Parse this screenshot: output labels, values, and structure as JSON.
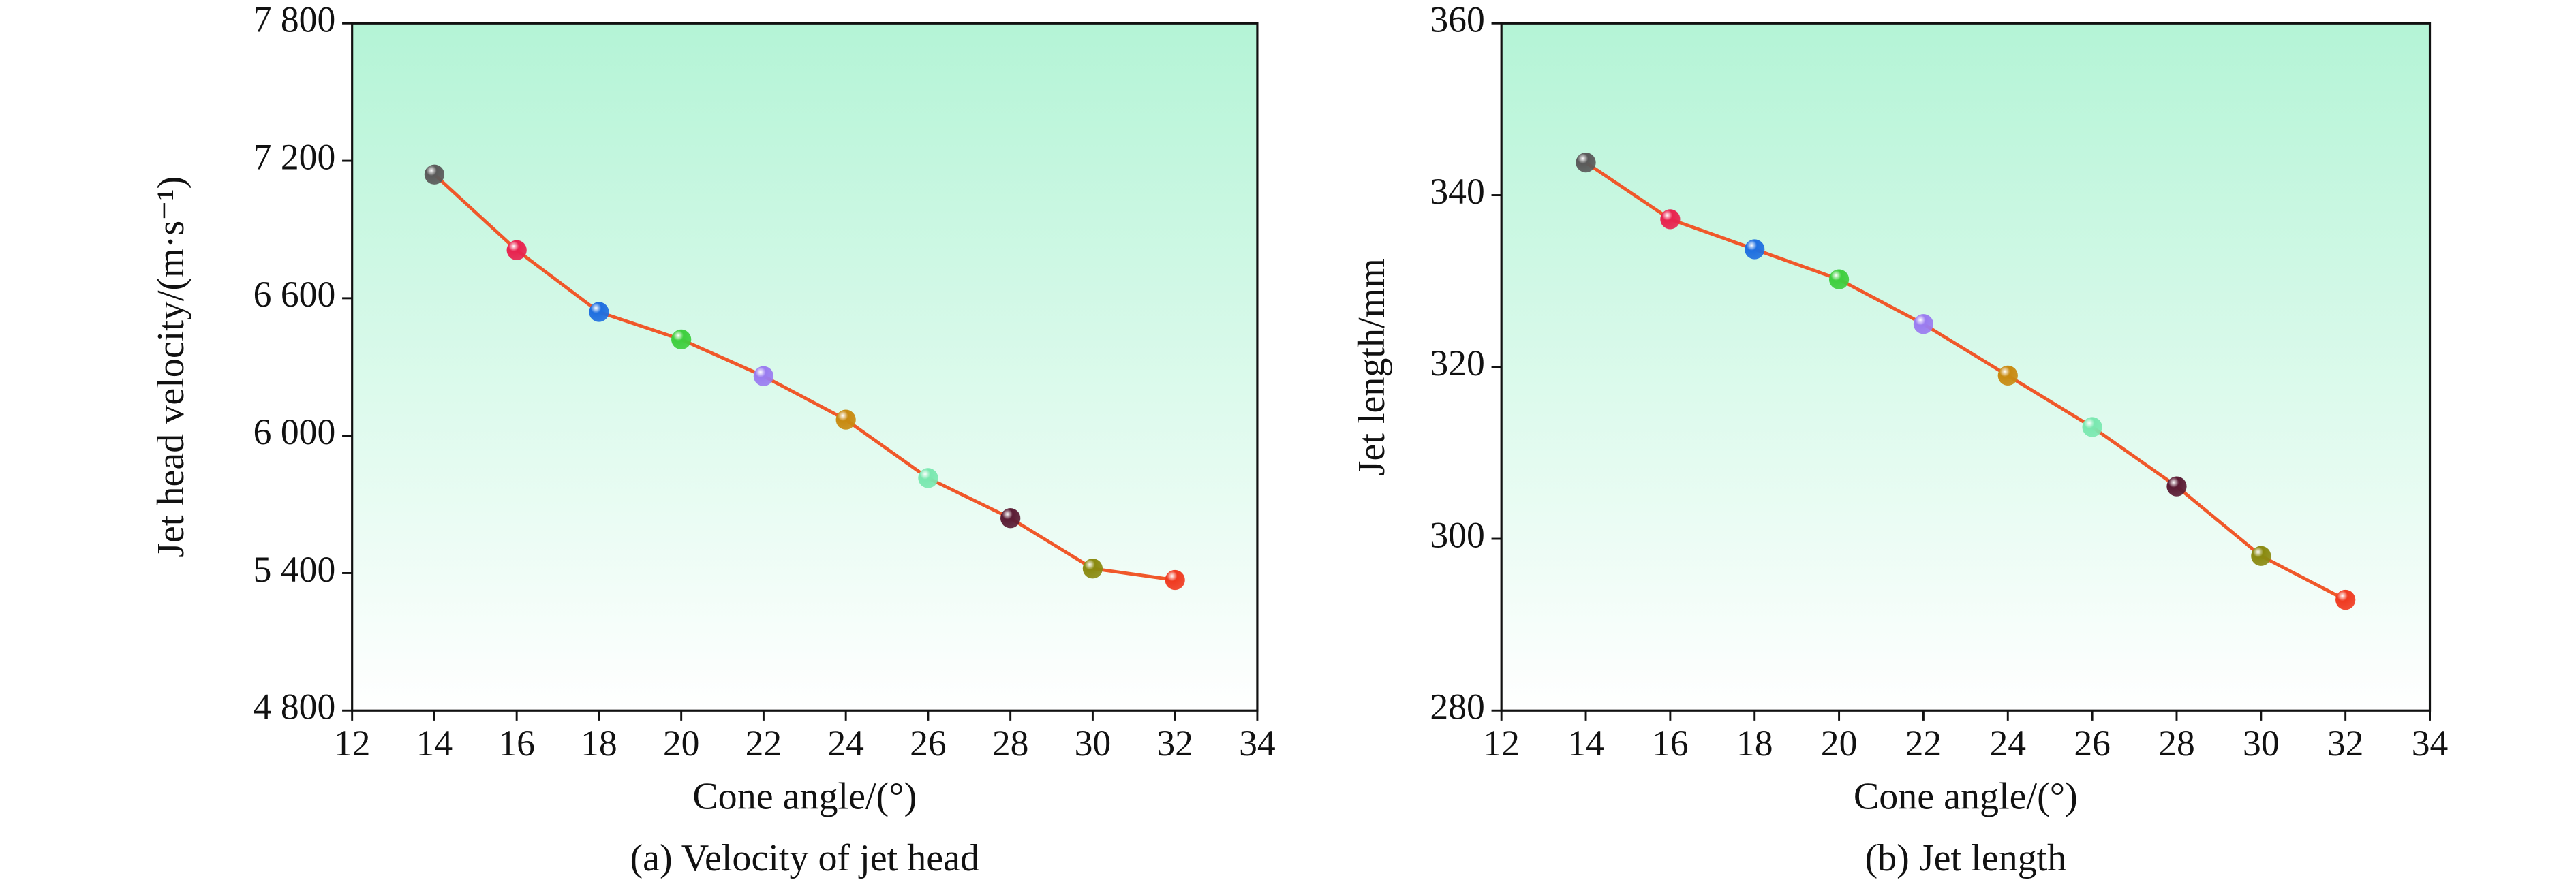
{
  "chart_data": [
    {
      "type": "line",
      "caption": "(a) Velocity of jet head",
      "x_label": "Cone angle/(°)",
      "y_label": "Jet head velocity/(m·s⁻¹)",
      "x": [
        14,
        16,
        18,
        20,
        22,
        24,
        26,
        28,
        30,
        32
      ],
      "values": [
        7140,
        6810,
        6540,
        6420,
        6260,
        6070,
        5815,
        5640,
        5420,
        5370
      ],
      "line_color": "#f0582a",
      "point_colors": [
        "#5a5a5a",
        "#e8234f",
        "#1f6fe0",
        "#3ecf3e",
        "#9a7cf0",
        "#c88a10",
        "#7ae8b0",
        "#5a1c34",
        "#8a8a10",
        "#f03a20"
      ],
      "xlim": [
        12,
        34
      ],
      "xticks": [
        12,
        14,
        16,
        18,
        20,
        22,
        24,
        26,
        28,
        30,
        32,
        34
      ],
      "ylim": [
        4800,
        7800
      ],
      "yticks": [
        {
          "value": 4800,
          "label": "4 800"
        },
        {
          "value": 5400,
          "label": "5 400"
        },
        {
          "value": 6000,
          "label": "6 000"
        },
        {
          "value": 6600,
          "label": "6 600"
        },
        {
          "value": 7200,
          "label": "7 200"
        },
        {
          "value": 7800,
          "label": "7 800"
        }
      ],
      "background_gradient": [
        "#b4f4d6",
        "#ffffff"
      ]
    },
    {
      "type": "line",
      "caption": "(b) Jet length",
      "x_label": "Cone angle/(°)",
      "y_label": "Jet length/mm",
      "x": [
        14,
        16,
        18,
        20,
        22,
        24,
        26,
        28,
        30,
        32
      ],
      "values": [
        343.8,
        337.2,
        333.7,
        330.2,
        325.0,
        319.0,
        313.0,
        306.1,
        298.0,
        292.9
      ],
      "line_color": "#f0582a",
      "point_colors": [
        "#5a5a5a",
        "#e8234f",
        "#1f6fe0",
        "#3ecf3e",
        "#9a7cf0",
        "#c88a10",
        "#7ae8b0",
        "#5a1c34",
        "#8a8a10",
        "#f03a20"
      ],
      "xlim": [
        12,
        34
      ],
      "xticks": [
        12,
        14,
        16,
        18,
        20,
        22,
        24,
        26,
        28,
        30,
        32,
        34
      ],
      "ylim": [
        280,
        360
      ],
      "yticks": [
        280,
        300,
        320,
        340,
        360
      ],
      "background_gradient": [
        "#b4f4d6",
        "#ffffff"
      ]
    }
  ]
}
